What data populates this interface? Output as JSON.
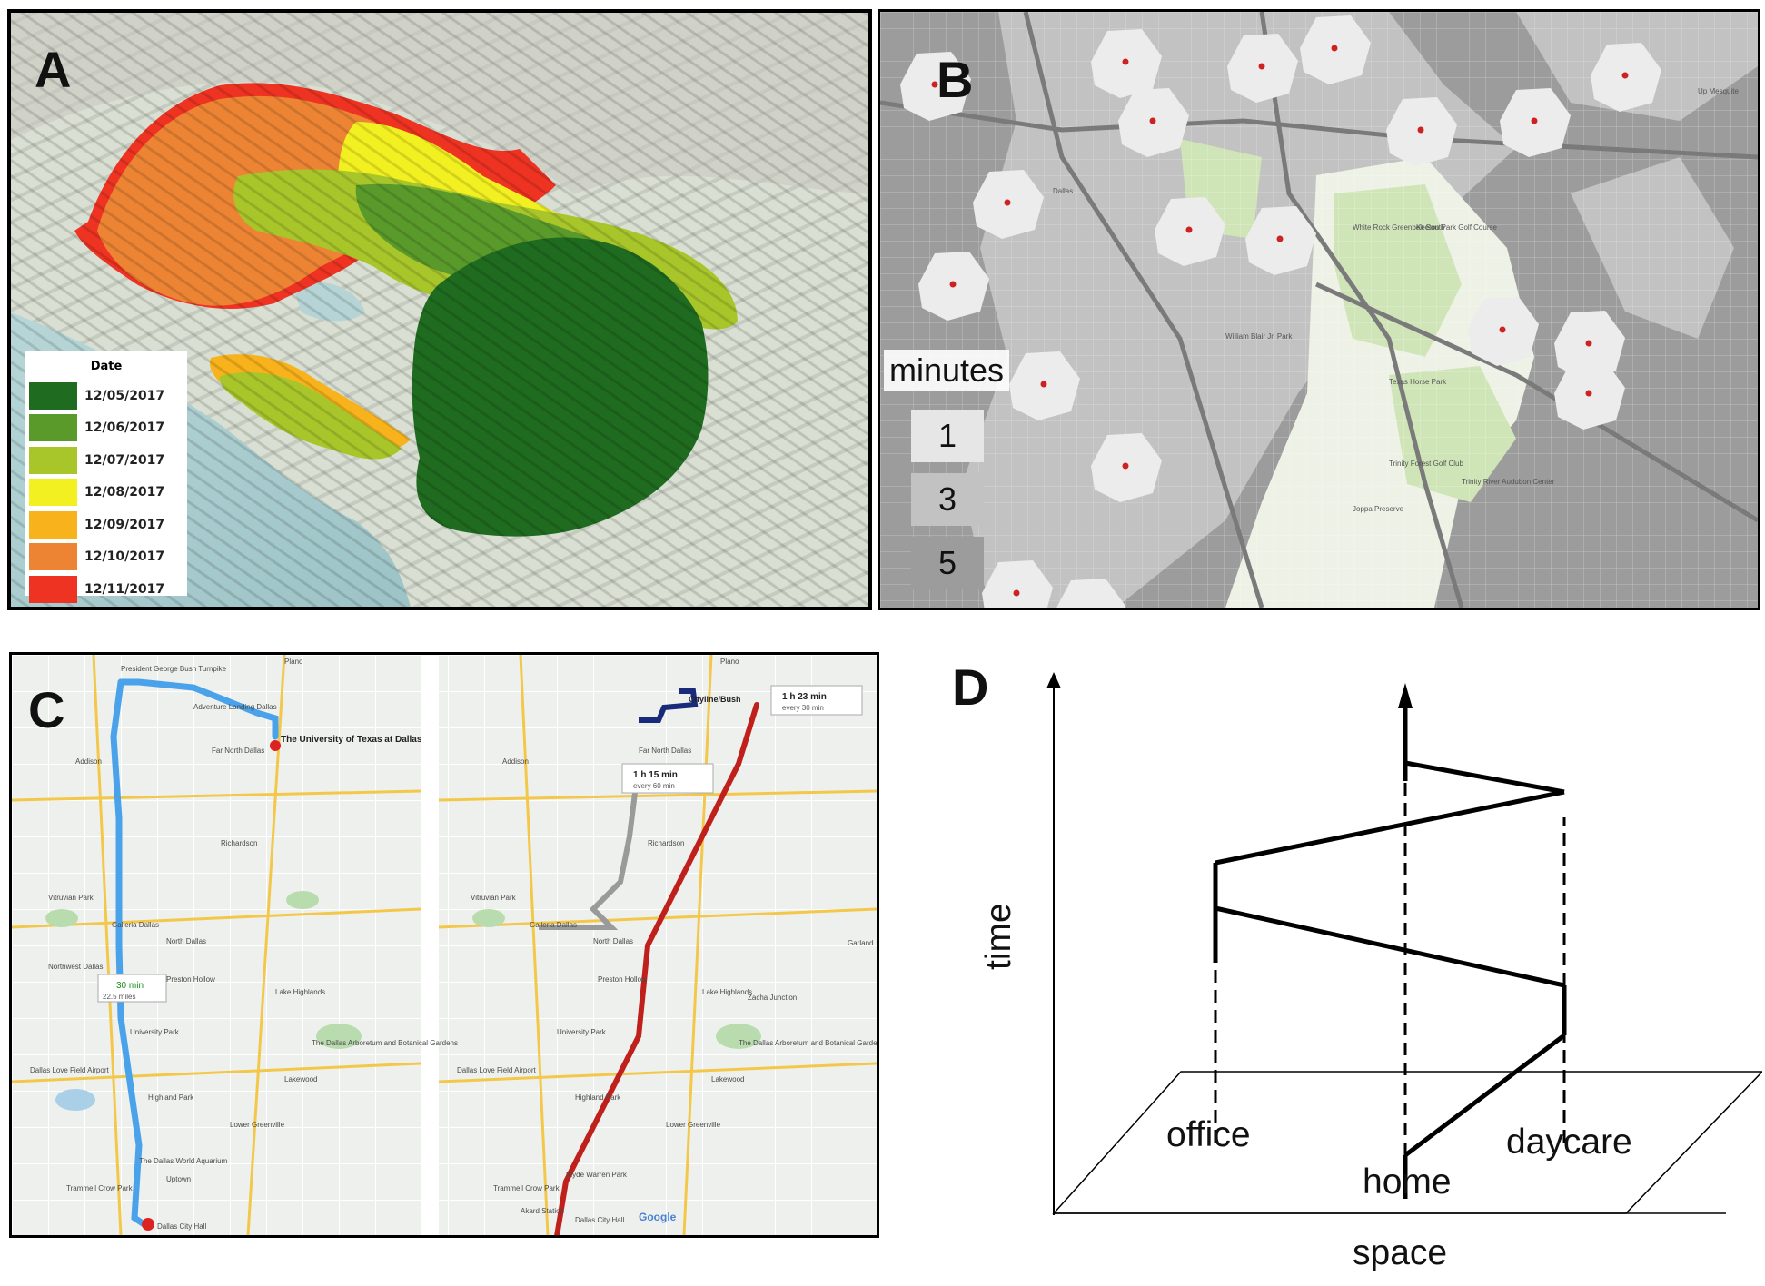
{
  "panels": {
    "a": {
      "letter": "A",
      "legend": {
        "title": "Date",
        "items": [
          {
            "date": "12/05/2017",
            "color": "#1f6b1f"
          },
          {
            "date": "12/06/2017",
            "color": "#5a9a2a"
          },
          {
            "date": "12/07/2017",
            "color": "#a8c62a"
          },
          {
            "date": "12/08/2017",
            "color": "#f2f020"
          },
          {
            "date": "12/09/2017",
            "color": "#f7b21c"
          },
          {
            "date": "12/10/2017",
            "color": "#ec8434"
          },
          {
            "date": "12/11/2017",
            "color": "#ee3322"
          }
        ]
      }
    },
    "b": {
      "letter": "B",
      "legend": {
        "title": "minutes",
        "items": [
          {
            "value": "1",
            "color": "#e6e6e6"
          },
          {
            "value": "3",
            "color": "#c2c2c2"
          },
          {
            "value": "5",
            "color": "#9c9c9c"
          }
        ]
      },
      "map_labels": [
        "Dallas",
        "White Rock Greenbelt South",
        "Keeton Park Golf Course",
        "Texas Horse Park",
        "Trinity Forest Golf Club",
        "Joppa Preserve",
        "Trinity River Audubon Center",
        "William Blair Jr. Park",
        "Up Mesquite"
      ]
    },
    "c": {
      "letter": "C",
      "left_map": {
        "places": [
          "Plano",
          "Addison",
          "Richardson",
          "Vitruvian Park",
          "Galleria Dallas",
          "North Dallas",
          "Northwest Dallas",
          "Preston Hollow",
          "Lake Highlands",
          "University Park",
          "Dallas Love Field Airport",
          "The Dallas Arboretum and Botanical Gardens",
          "Highland Park",
          "Lower Greenville",
          "Uptown",
          "The Dallas World Aquarium",
          "Trammell Crow Park",
          "Dallas City Hall",
          "Adventure Landing Dallas",
          "President George Bush Turnpike",
          "Far North Dallas",
          "Lakewood"
        ],
        "destination": "The University of Texas at Dallas",
        "route_time": "30 min",
        "route_dist": "22.5 miles"
      },
      "right_map": {
        "places": [
          "Plano",
          "Addison",
          "Richardson",
          "Vitruvian Park",
          "Galleria Dallas",
          "North Dallas",
          "Preston Hollow",
          "Lake Highlands",
          "University Park",
          "Dallas Love Field Airport",
          "The Dallas Arboretum and Botanical Gardens",
          "Highland Park",
          "Lower Greenville",
          "Klyde Warren Park",
          "Trammell Crow Park",
          "Dallas City Hall",
          "Akard Station",
          "Zacha Junction",
          "Lakewood",
          "Far North Dallas",
          "Garland"
        ],
        "station": "Cityline/Bush",
        "transit_1_time": "1 h 23 min",
        "transit_1_freq": "every 30 min",
        "transit_2_time": "1 h 15 min",
        "transit_2_freq": "every 60 min",
        "brand": "Google"
      }
    },
    "d": {
      "letter": "D",
      "y_label": "time",
      "x_label": "space",
      "places": {
        "office": "office",
        "home": "home",
        "daycare": "daycare"
      }
    }
  },
  "colors": {
    "route_car": "#4aa3ea",
    "route_train_red": "#c0201c",
    "route_train_blue": "#1a2a7a",
    "route_bus_gray": "#9a9a9a"
  }
}
